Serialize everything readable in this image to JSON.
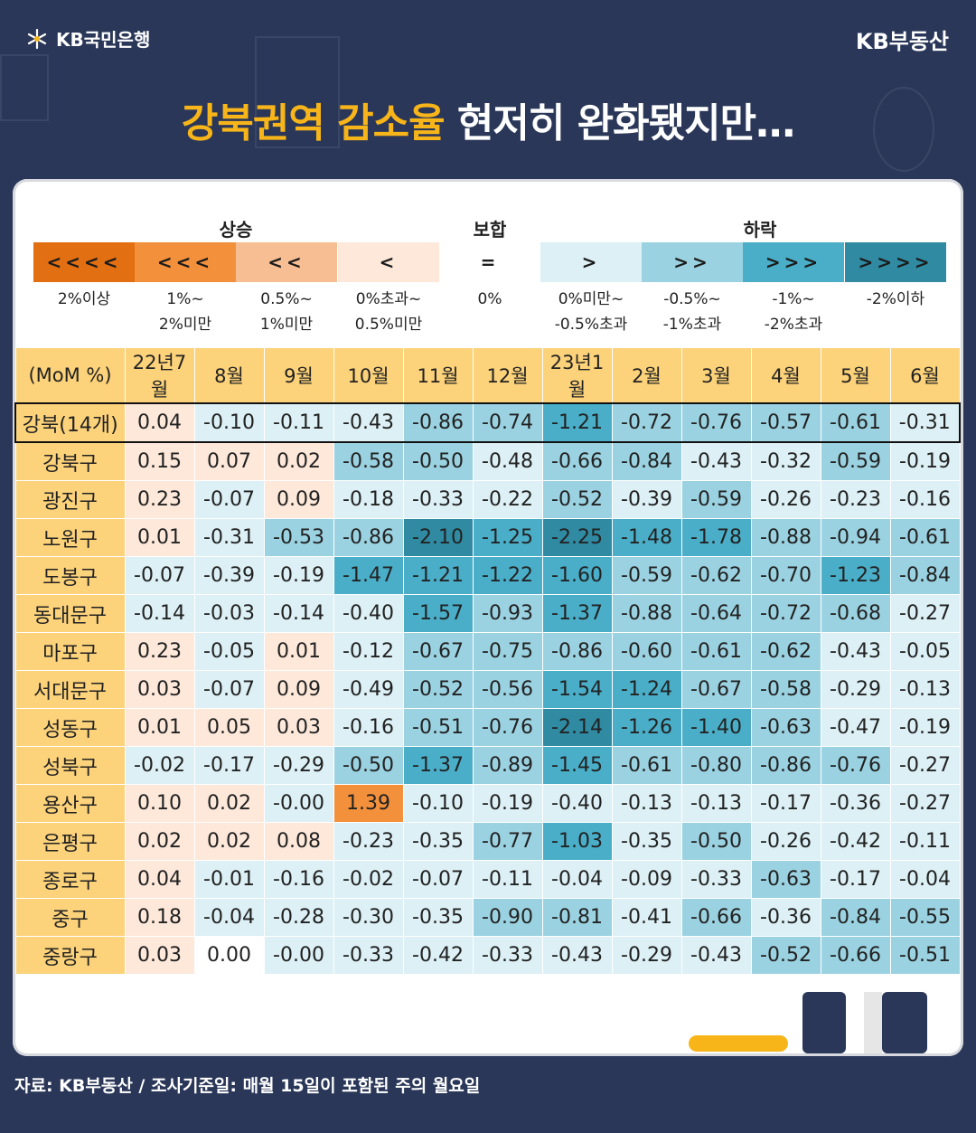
{
  "header": {
    "bank_label": "KB국민은행",
    "brand_label": "KB부동산",
    "headline_highlight": "강북권역 감소율",
    "headline_rest": " 현저히 완화됐지만…"
  },
  "legend": {
    "groups": [
      "상승",
      "보합",
      "하락"
    ],
    "swatches": [
      {
        "symbol": "<<<<",
        "label": "2%이상",
        "color": "#e26f12"
      },
      {
        "symbol": "<<<",
        "label": "1%~\n2%미만",
        "color": "#f2903b"
      },
      {
        "symbol": "<<",
        "label": "0.5%~\n1%미만",
        "color": "#f8be93"
      },
      {
        "symbol": "<",
        "label": "0%초과~\n0.5%미만",
        "color": "#fde8da"
      },
      {
        "symbol": "=",
        "label": "0%",
        "color": "#ffffff"
      },
      {
        "symbol": ">",
        "label": "0%미만~\n-0.5%초과",
        "color": "#dcf0f5"
      },
      {
        "symbol": ">>",
        "label": "-0.5%~\n-1%초과",
        "color": "#9bd2e1"
      },
      {
        "symbol": ">>>",
        "label": "-1%~\n-2%초과",
        "color": "#4aaec8"
      },
      {
        "symbol": ">>>>",
        "label": "-2%이하",
        "color": "#2f8aa2"
      }
    ]
  },
  "chart_data": {
    "type": "heatmap",
    "unit_label": "(MoM %)",
    "columns": [
      "22년7월",
      "8월",
      "9월",
      "10월",
      "11월",
      "12월",
      "23년1월",
      "2월",
      "3월",
      "4월",
      "5월",
      "6월"
    ],
    "rows": [
      {
        "name": "강북(14개)",
        "values": [
          0.04,
          -0.1,
          -0.11,
          -0.43,
          -0.86,
          -0.74,
          -1.21,
          -0.72,
          -0.76,
          -0.57,
          -0.61,
          -0.31
        ]
      },
      {
        "name": "강북구",
        "values": [
          0.15,
          0.07,
          0.02,
          -0.58,
          -0.5,
          -0.48,
          -0.66,
          -0.84,
          -0.43,
          -0.32,
          -0.59,
          -0.19
        ]
      },
      {
        "name": "광진구",
        "values": [
          0.23,
          -0.07,
          0.09,
          -0.18,
          -0.33,
          -0.22,
          -0.52,
          -0.39,
          -0.59,
          -0.26,
          -0.23,
          -0.16
        ]
      },
      {
        "name": "노원구",
        "values": [
          0.01,
          -0.31,
          -0.53,
          -0.86,
          -2.1,
          -1.25,
          -2.25,
          -1.48,
          -1.78,
          -0.88,
          -0.94,
          -0.61
        ]
      },
      {
        "name": "도봉구",
        "values": [
          -0.07,
          -0.39,
          -0.19,
          -1.47,
          -1.21,
          -1.22,
          -1.6,
          -0.59,
          -0.62,
          -0.7,
          -1.23,
          -0.84
        ]
      },
      {
        "name": "동대문구",
        "values": [
          -0.14,
          -0.03,
          -0.14,
          -0.4,
          -1.57,
          -0.93,
          -1.37,
          -0.88,
          -0.64,
          -0.72,
          -0.68,
          -0.27
        ]
      },
      {
        "name": "마포구",
        "values": [
          0.23,
          -0.05,
          0.01,
          -0.12,
          -0.67,
          -0.75,
          -0.86,
          -0.6,
          -0.61,
          -0.62,
          -0.43,
          -0.05
        ]
      },
      {
        "name": "서대문구",
        "values": [
          0.03,
          -0.07,
          0.09,
          -0.49,
          -0.52,
          -0.56,
          -1.54,
          -1.24,
          -0.67,
          -0.58,
          -0.29,
          -0.13
        ]
      },
      {
        "name": "성동구",
        "values": [
          0.01,
          0.05,
          0.03,
          -0.16,
          -0.51,
          -0.76,
          -2.14,
          -1.26,
          -1.4,
          -0.63,
          -0.47,
          -0.19
        ]
      },
      {
        "name": "성북구",
        "values": [
          -0.02,
          -0.17,
          -0.29,
          -0.5,
          -1.37,
          -0.89,
          -1.45,
          -0.61,
          -0.8,
          -0.86,
          -0.76,
          -0.27
        ]
      },
      {
        "name": "용산구",
        "values": [
          0.1,
          0.02,
          -0.0,
          1.39,
          -0.1,
          -0.19,
          -0.4,
          -0.13,
          -0.13,
          -0.17,
          -0.36,
          -0.27
        ]
      },
      {
        "name": "은평구",
        "values": [
          0.02,
          0.02,
          0.08,
          -0.23,
          -0.35,
          -0.77,
          -1.03,
          -0.35,
          -0.5,
          -0.26,
          -0.42,
          -0.11
        ]
      },
      {
        "name": "종로구",
        "values": [
          0.04,
          -0.01,
          -0.16,
          -0.02,
          -0.07,
          -0.11,
          -0.04,
          -0.09,
          -0.33,
          -0.63,
          -0.17,
          -0.04
        ]
      },
      {
        "name": "중구",
        "values": [
          0.18,
          -0.04,
          -0.28,
          -0.3,
          -0.35,
          -0.9,
          -0.81,
          -0.41,
          -0.66,
          -0.36,
          -0.84,
          -0.55
        ]
      },
      {
        "name": "중랑구",
        "values": [
          0.03,
          0.0,
          -0.0,
          -0.33,
          -0.42,
          -0.33,
          -0.43,
          -0.29,
          -0.43,
          -0.52,
          -0.66,
          -0.51
        ]
      }
    ]
  },
  "footer": {
    "source": "자료: KB부동산 / 조사기준일: 매월 15일이 포함된 주의 월요일"
  }
}
